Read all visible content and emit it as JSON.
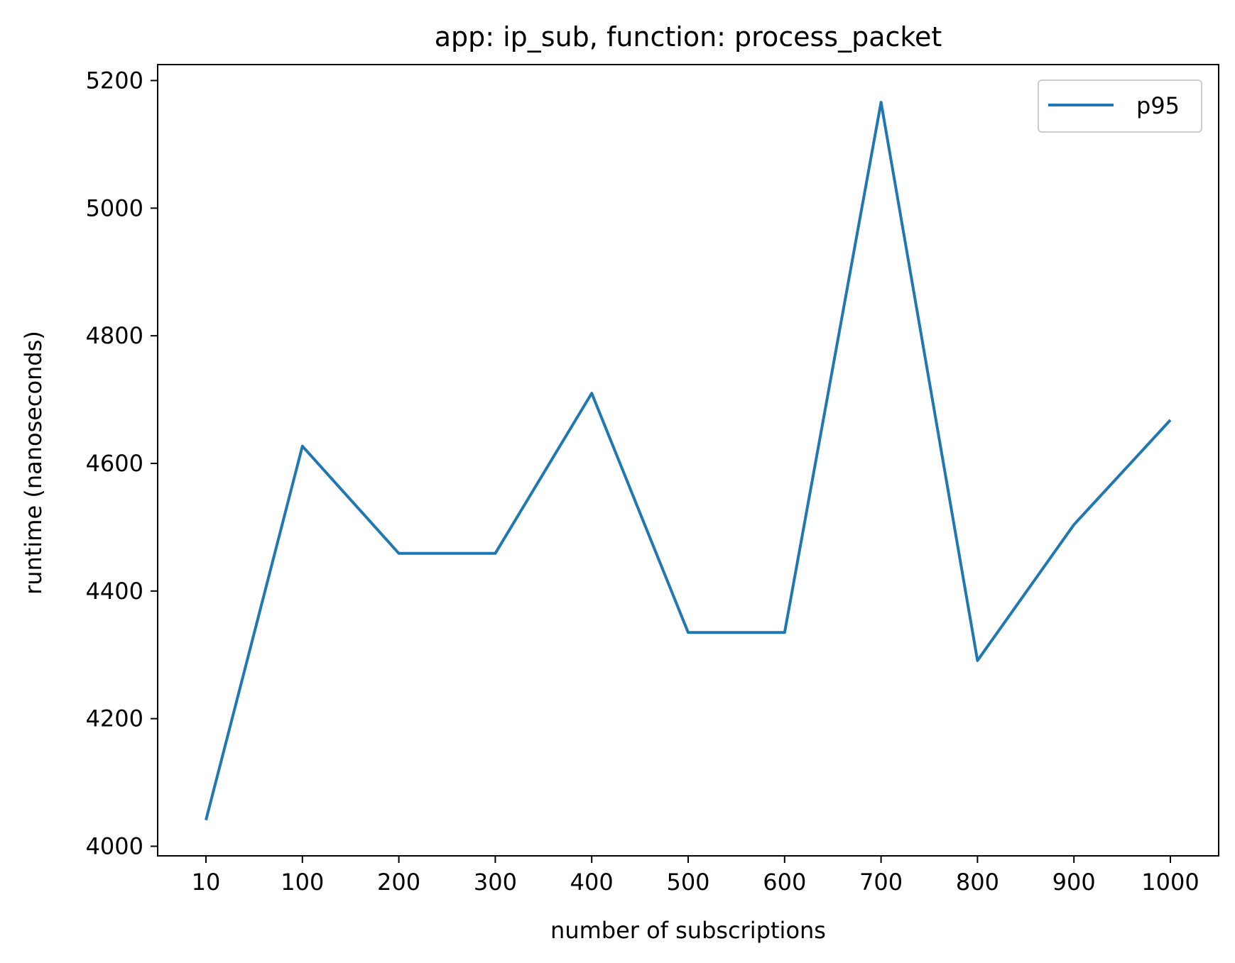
{
  "chart_data": {
    "type": "line",
    "title": "app: ip_sub, function: process_packet",
    "xlabel": "number of subscriptions",
    "ylabel": "runtime (nanoseconds)",
    "categories": [
      "10",
      "100",
      "200",
      "300",
      "400",
      "500",
      "600",
      "700",
      "800",
      "900",
      "1000"
    ],
    "ylim": [
      3985,
      5225
    ],
    "yticks": [
      "4000",
      "4200",
      "4400",
      "4600",
      "4800",
      "5000",
      "5200"
    ],
    "grid": false,
    "legend": {
      "position": "top-right"
    },
    "series": [
      {
        "name": "p95",
        "color": "#1f77b4",
        "values": [
          4041,
          4627,
          4459,
          4459,
          4710,
          4335,
          4335,
          5166,
          4291,
          4504,
          4668
        ]
      }
    ]
  }
}
